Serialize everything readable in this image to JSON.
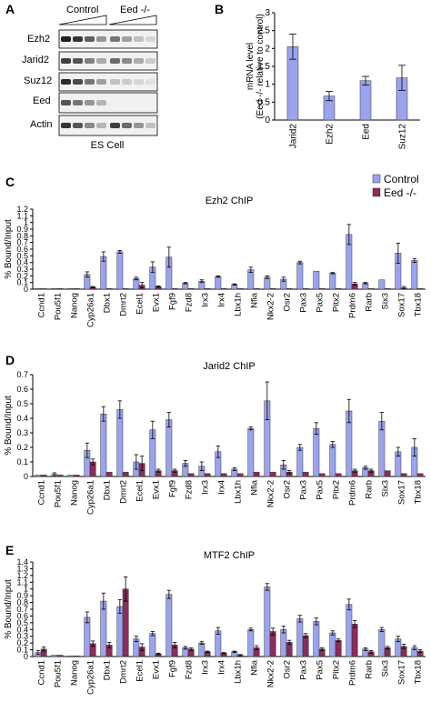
{
  "panels": {
    "A": "A",
    "B": "B",
    "C": "C",
    "D": "D",
    "E": "E"
  },
  "western": {
    "headers": [
      "Control",
      "Eed -/-"
    ],
    "rows": [
      "Ezh2",
      "Jarid2",
      "Suz12",
      "Eed",
      "Actin"
    ],
    "caption": "ES Cell"
  },
  "legend": {
    "control": "Control",
    "eed": "Eed -/-"
  },
  "colors": {
    "control": "#9aa3ee",
    "eed": "#8b2c5a",
    "edge": "#333333"
  },
  "chart_data": [
    {
      "panel": "B",
      "type": "bar",
      "ylabel": "mRNA level (Eed -/- relative to control)",
      "ylabel_lines": [
        "mRNA level",
        "(Eed -/- relative to control)"
      ],
      "categories": [
        "Jarid2",
        "Ezh2",
        "Eed",
        "Suz12"
      ],
      "values": [
        2.05,
        0.67,
        1.1,
        1.18
      ],
      "errors": [
        0.35,
        0.13,
        0.12,
        0.35
      ],
      "ylim": [
        0,
        3
      ],
      "yticks": [
        "0",
        "0.5",
        "1",
        "1.5",
        "2",
        "2.5",
        "3"
      ],
      "grid": false
    },
    {
      "panel": "C",
      "type": "bar",
      "title": "Ezh2 ChIP",
      "ylabel": "% Bound/Input",
      "categories": [
        "Ccnd1",
        "Pou5f1",
        "Nanog",
        "Cyp26a1",
        "Dbx1",
        "Dmrt2",
        "Ecel1",
        "Evx1",
        "Fgf9",
        "Fzd8",
        "Irx3",
        "Irx4",
        "Lbx1h",
        "Nfia",
        "Nkx2-2",
        "Osr2",
        "Pax3",
        "Pax5",
        "Pitx2",
        "Prdm6",
        "Rarb",
        "Six3",
        "Sox17",
        "Tbx18"
      ],
      "series": [
        {
          "name": "Control",
          "values": [
            0.01,
            0.01,
            0.01,
            0.22,
            0.49,
            0.56,
            0.16,
            0.33,
            0.48,
            0.09,
            0.12,
            0.19,
            0.07,
            0.29,
            0.18,
            0.15,
            0.4,
            0.27,
            0.24,
            0.82,
            0.09,
            0.14,
            0.54,
            0.43
          ],
          "errors": [
            0,
            0,
            0,
            0.04,
            0.07,
            0.02,
            0.02,
            0.08,
            0.15,
            0.01,
            0.02,
            0.01,
            0.01,
            0.04,
            0.02,
            0.03,
            0.02,
            0,
            0.01,
            0.15,
            0.01,
            0,
            0.15,
            0.03
          ]
        },
        {
          "name": "Eed -/-",
          "values": [
            0.005,
            0.01,
            0.01,
            0.03,
            0.01,
            0.01,
            0.06,
            0.04,
            0.01,
            0.01,
            0.01,
            0.01,
            0.01,
            0.01,
            0.01,
            0.01,
            0.01,
            0.01,
            0.01,
            0.08,
            0.01,
            0.01,
            0.02,
            0.01
          ],
          "errors": [
            0,
            0,
            0,
            0.01,
            0,
            0,
            0.04,
            0.01,
            0,
            0,
            0,
            0,
            0,
            0,
            0,
            0,
            0,
            0,
            0,
            0.02,
            0,
            0,
            0.02,
            0
          ]
        }
      ],
      "ylim": [
        0,
        1.2
      ],
      "yticks": [
        "0",
        "0.1",
        "0.2",
        "0.3",
        "0.4",
        "0.5",
        "0.6",
        "0.7",
        "0.8",
        "0.9",
        "1",
        "1.1",
        "1.2"
      ],
      "legend_position": "top-right",
      "grid": false
    },
    {
      "panel": "D",
      "type": "bar",
      "title": "Jarid2 ChIP",
      "ylabel": "% Bound/Input",
      "categories": [
        "Ccnd1",
        "Pou5f1",
        "Nanog",
        "Cyp26a1",
        "Dbx1",
        "Dmrt2",
        "Ecel1",
        "Evx1",
        "Fgf9",
        "Fzd8",
        "Irx3",
        "Irx4",
        "Lbx1h",
        "Nfia",
        "Nkx2-2",
        "Osr2",
        "Pax3",
        "Pax5",
        "Pitx2",
        "Prdm6",
        "Rarb",
        "Six3",
        "Sox17",
        "Tbx18"
      ],
      "series": [
        {
          "name": "Control",
          "values": [
            0.01,
            0.015,
            0.01,
            0.18,
            0.43,
            0.46,
            0.1,
            0.32,
            0.39,
            0.09,
            0.07,
            0.17,
            0.05,
            0.33,
            0.52,
            0.08,
            0.2,
            0.33,
            0.22,
            0.45,
            0.06,
            0.38,
            0.17,
            0.2
          ],
          "errors": [
            0,
            0.01,
            0,
            0.05,
            0.05,
            0.06,
            0.05,
            0.06,
            0.05,
            0.02,
            0.03,
            0.04,
            0.01,
            0.01,
            0.13,
            0.03,
            0.02,
            0.04,
            0.02,
            0.08,
            0.01,
            0.06,
            0.03,
            0.06
          ]
        },
        {
          "name": "Eed -/-",
          "values": [
            0.01,
            0.01,
            0.01,
            0.1,
            0.03,
            0.03,
            0.09,
            0.04,
            0.04,
            0.02,
            0.02,
            0.02,
            0.02,
            0.03,
            0.03,
            0.03,
            0.03,
            0.02,
            0.02,
            0.04,
            0.04,
            0.04,
            0.02,
            0.02
          ],
          "errors": [
            0,
            0,
            0,
            0.02,
            0,
            0,
            0.05,
            0.01,
            0.01,
            0,
            0,
            0,
            0,
            0,
            0,
            0.01,
            0,
            0,
            0,
            0.01,
            0.01,
            0,
            0,
            0
          ]
        }
      ],
      "ylim": [
        0,
        0.7
      ],
      "yticks": [
        "0",
        "0.1",
        "0.2",
        "0.3",
        "0.4",
        "0.5",
        "0.6",
        "0.7"
      ],
      "grid": false
    },
    {
      "panel": "E",
      "type": "bar",
      "title": "MTF2 ChIP",
      "ylabel": "% Bound/Input",
      "categories": [
        "Ccnd1",
        "Pou5f1",
        "Nanog",
        "Cyp26a1",
        "Dbx1",
        "Dmrt2",
        "Ecel1",
        "Evx1",
        "Fgf9",
        "Fzd8",
        "Irx3",
        "Irx4",
        "Lbx1h",
        "Nfia",
        "Nkx2-2",
        "Osr2",
        "Pax3",
        "Pax5",
        "Pitx2",
        "Prdm6",
        "Rarb",
        "Six3",
        "Sox17",
        "Tbx18"
      ],
      "series": [
        {
          "name": "Control",
          "values": [
            0.06,
            0.02,
            0.01,
            0.58,
            0.82,
            0.74,
            0.26,
            0.34,
            0.92,
            0.13,
            0.2,
            0.38,
            0.07,
            0.4,
            1.03,
            0.4,
            0.56,
            0.52,
            0.35,
            0.77,
            0.11,
            0.4,
            0.26,
            0.13
          ],
          "errors": [
            0.03,
            0,
            0,
            0.08,
            0.12,
            0.1,
            0.04,
            0.03,
            0.06,
            0.02,
            0.02,
            0.05,
            0.01,
            0.02,
            0.05,
            0.05,
            0.05,
            0.05,
            0.03,
            0.08,
            0.02,
            0.03,
            0.04,
            0.03
          ]
        },
        {
          "name": "Eed -/-",
          "values": [
            0.11,
            0.02,
            0.01,
            0.19,
            0.17,
            1.0,
            0.14,
            0.04,
            0.17,
            0.11,
            0.07,
            0.05,
            0.02,
            0.13,
            0.37,
            0.21,
            0.31,
            0.11,
            0.24,
            0.48,
            0.07,
            0.13,
            0.15,
            0.08
          ],
          "errors": [
            0.03,
            0,
            0,
            0.04,
            0.04,
            0.18,
            0.05,
            0.01,
            0.04,
            0.02,
            0.01,
            0.01,
            0.01,
            0.03,
            0.05,
            0.03,
            0.03,
            0.02,
            0.02,
            0.05,
            0.02,
            0.02,
            0.03,
            0.02
          ]
        }
      ],
      "ylim": [
        0,
        1.4
      ],
      "yticks": [
        "0",
        "0.1",
        "0.2",
        "0.3",
        "0.4",
        "0.5",
        "0.6",
        "0.7",
        "0.8",
        "0.9",
        "1",
        "1.1",
        "1.2",
        "1.3",
        "1.4"
      ],
      "grid": false
    }
  ]
}
